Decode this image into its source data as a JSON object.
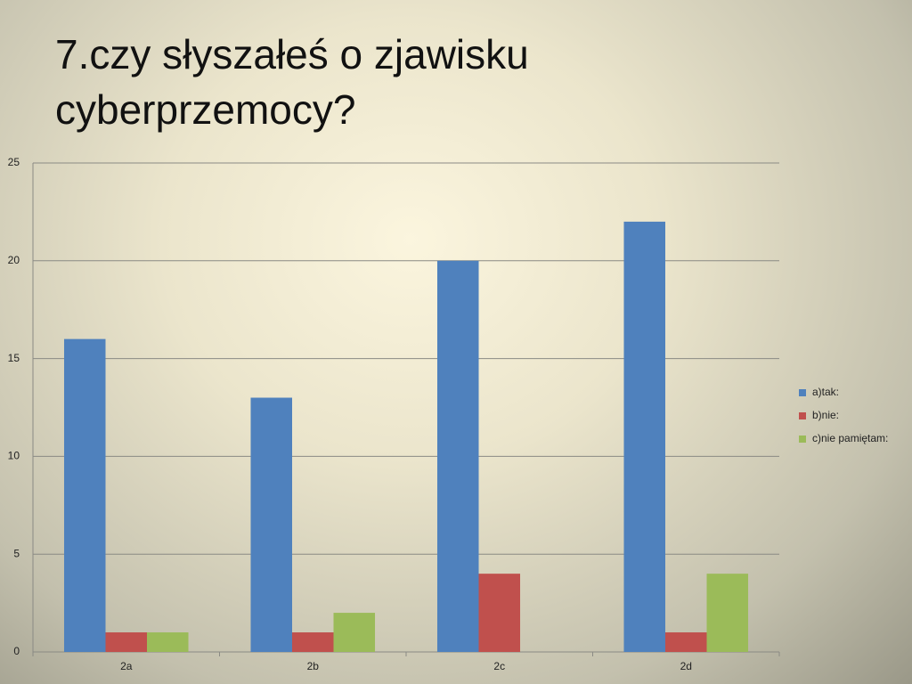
{
  "chart_data": {
    "type": "bar",
    "title": "7.czy słyszałeś o zjawisku cyberprzemocy?",
    "categories": [
      "2a",
      "2b",
      "2c",
      "2d"
    ],
    "series": [
      {
        "name": "a)tak:",
        "color": "#4f81bd",
        "values": [
          16,
          13,
          20,
          22
        ]
      },
      {
        "name": "b)nie:",
        "color": "#c0504d",
        "values": [
          1,
          1,
          4,
          1
        ]
      },
      {
        "name": "c)nie pamiętam:",
        "color": "#9bbb59",
        "values": [
          1,
          2,
          0,
          4
        ]
      }
    ],
    "ylim": [
      0,
      25
    ],
    "yticks": [
      0,
      5,
      10,
      15,
      20,
      25
    ],
    "grid": true,
    "legend": "right"
  }
}
